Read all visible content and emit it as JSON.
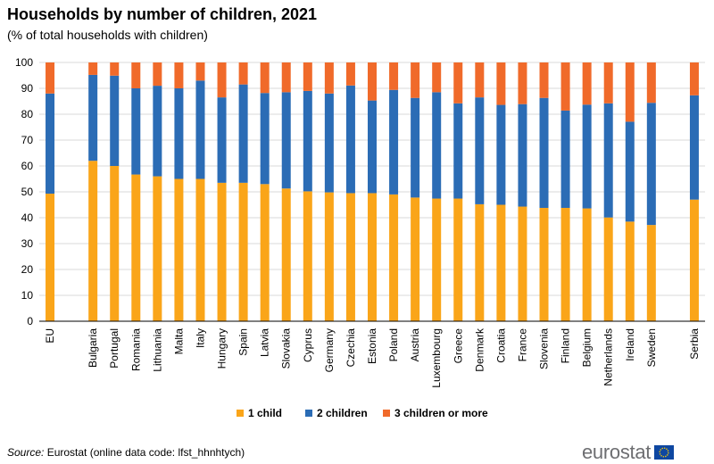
{
  "title": "Households by number of children, 2021",
  "subtitle": "(% of total households with children)",
  "source_label": "Source:",
  "source_text": "Eurostat (online data code: lfst_hhnhtych)",
  "logo_text": "eurostat",
  "colors": {
    "one_child": "#faa519",
    "two_children": "#2b6cb5",
    "three_plus": "#f06a2a",
    "grid": "#d9d9d9",
    "axis": "#000000"
  },
  "chart_data": {
    "type": "bar",
    "stacked": true,
    "title": "Households by number of children, 2021",
    "xlabel": "",
    "ylabel": "",
    "ylim": [
      0,
      100
    ],
    "yticks": [
      0,
      10,
      20,
      30,
      40,
      50,
      60,
      70,
      80,
      90,
      100
    ],
    "grid": true,
    "legend_position": "bottom",
    "categories": [
      "EU",
      "",
      "Bulgaria",
      "Portugal",
      "Romania",
      "Lithuania",
      "Malta",
      "Italy",
      "Hungary",
      "Spain",
      "Latvia",
      "Slovakia",
      "Cyprus",
      "Germany",
      "Czechia",
      "Estonia",
      "Poland",
      "Austria",
      "Luxembourg",
      "Greece",
      "Denmark",
      "Croatia",
      "France",
      "Slovenia",
      "Finland",
      "Belgium",
      "Netherlands",
      "Ireland",
      "Sweden",
      "",
      "Serbia"
    ],
    "series": [
      {
        "name": "1 child",
        "values": [
          49.3,
          null,
          62,
          60,
          56.7,
          56,
          55,
          55,
          53.5,
          53.5,
          53,
          51.3,
          50.2,
          49.8,
          49.5,
          49.5,
          49,
          47.8,
          47.4,
          47.4,
          45.2,
          45,
          44.3,
          43.8,
          43.8,
          43.6,
          40.1,
          38.5,
          37.2,
          null,
          47
        ]
      },
      {
        "name": "2 children",
        "values": [
          38.7,
          null,
          33.2,
          34.9,
          33.3,
          35,
          35,
          38,
          33,
          38,
          35.2,
          37.2,
          38.8,
          38.2,
          41.6,
          35.8,
          40.4,
          38.5,
          41.1,
          36.8,
          41.3,
          38.6,
          39.6,
          42.5,
          37.6,
          40.1,
          44.1,
          38.6,
          47.2,
          null,
          40.3
        ]
      },
      {
        "name": "3 children or more",
        "values": [
          12,
          null,
          4.8,
          5.1,
          10,
          9,
          10,
          7,
          13.5,
          8.5,
          11.8,
          11.5,
          11,
          12,
          8.9,
          14.7,
          10.6,
          13.7,
          11.5,
          15.8,
          13.5,
          16.4,
          16.1,
          13.7,
          18.6,
          16.3,
          15.8,
          22.9,
          15.6,
          null,
          12.7
        ]
      }
    ]
  }
}
